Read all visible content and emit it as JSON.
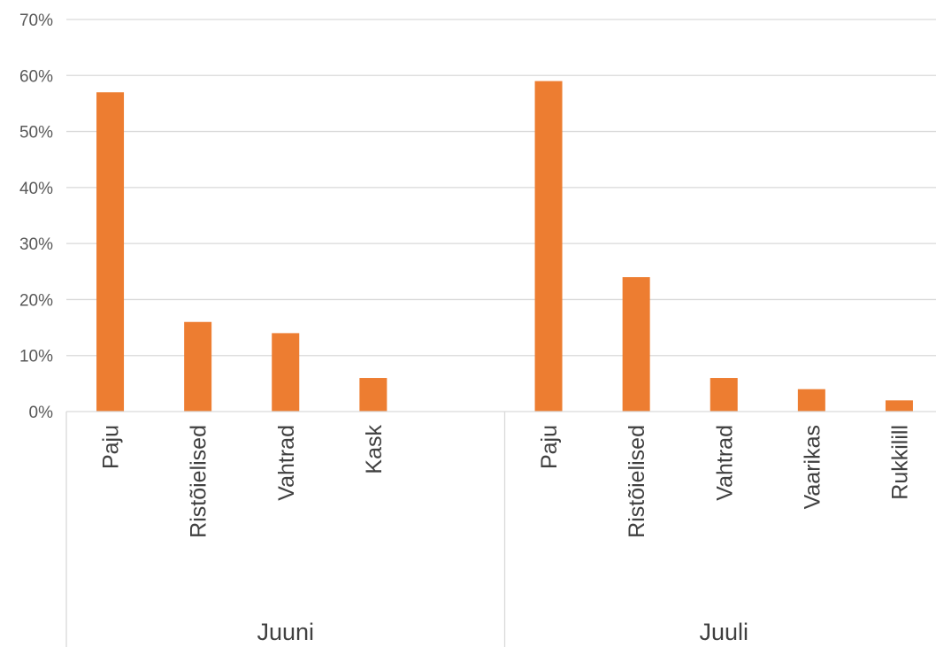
{
  "chart_data": {
    "type": "bar",
    "title": "",
    "xlabel": "",
    "ylabel": "",
    "ylim": [
      0,
      70
    ],
    "yticks": [
      0,
      10,
      20,
      30,
      40,
      50,
      60,
      70
    ],
    "ytick_labels": [
      "0%",
      "10%",
      "20%",
      "30%",
      "40%",
      "50%",
      "60%",
      "70%"
    ],
    "grid": true,
    "legend": "none",
    "bar_color": "#ED7D31",
    "grid_color": "#D9D9D9",
    "groups": [
      {
        "label": "Juuni",
        "slots": 5,
        "categories": [
          "Paju",
          "Ristõielised",
          "Vahtrad",
          "Kask"
        ],
        "values": [
          57,
          16,
          14,
          6
        ]
      },
      {
        "label": "Juuli",
        "slots": 5,
        "categories": [
          "Paju",
          "Ristõielised",
          "Vahtrad",
          "Vaarikas",
          "Rukkilill"
        ],
        "values": [
          59,
          24,
          6,
          4,
          2
        ]
      }
    ]
  }
}
